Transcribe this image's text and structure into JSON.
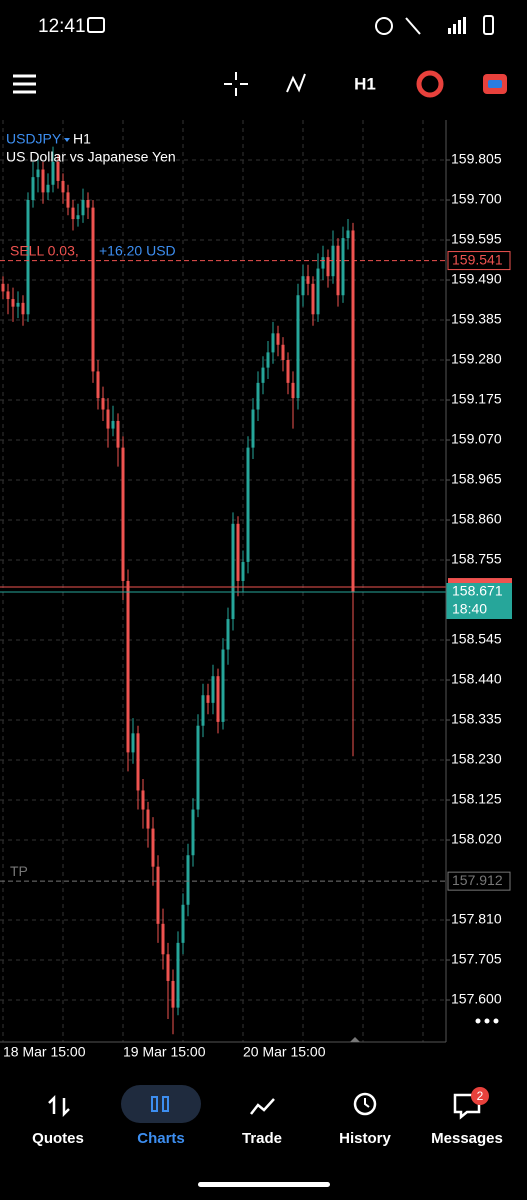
{
  "status_bar": {
    "time": "12:41"
  },
  "toolbar": {
    "timeframe": "H1"
  },
  "chart_data": {
    "type": "candlestick",
    "symbol": "USDJPY",
    "timeframe": "H1",
    "description": "US Dollar vs Japanese Yen",
    "ylim": [
      157.495,
      159.91
    ],
    "yticks": [
      159.805,
      {
        "value": 159.7,
        "label": "159.700"
      },
      159.595,
      {
        "value": 159.49,
        "label": "159.490"
      },
      159.385,
      {
        "value": 159.28,
        "label": "159.280"
      },
      159.175,
      {
        "value": 159.07,
        "label": "159.070"
      },
      158.965,
      {
        "value": 158.86,
        "label": "158.860"
      },
      158.755,
      158.545,
      {
        "value": 158.44,
        "label": "158.440"
      },
      158.335,
      {
        "value": 158.23,
        "label": "158.230"
      },
      158.125,
      {
        "value": 158.02,
        "label": "158.020"
      },
      {
        "value": 157.81,
        "label": "157.810"
      },
      157.705,
      {
        "value": 157.6,
        "label": "157.600"
      }
    ],
    "grid": true,
    "up_color": "#26a69a",
    "down_color": "#ef5350",
    "x_labels": [
      "18 Mar 15:00",
      "19 Mar 15:00",
      "20 Mar 15:00"
    ],
    "candles": [
      [
        159.48,
        159.5,
        159.44,
        159.46
      ],
      [
        159.46,
        159.48,
        159.4,
        159.44
      ],
      [
        159.44,
        159.47,
        159.38,
        159.42
      ],
      [
        159.42,
        159.46,
        159.39,
        159.43
      ],
      [
        159.43,
        159.45,
        159.37,
        159.4
      ],
      [
        159.4,
        159.72,
        159.38,
        159.7
      ],
      [
        159.7,
        159.8,
        159.68,
        159.76
      ],
      [
        159.76,
        159.82,
        159.72,
        159.78
      ],
      [
        159.78,
        159.8,
        159.69,
        159.72
      ],
      [
        159.72,
        159.77,
        159.7,
        159.74
      ],
      [
        159.74,
        159.84,
        159.72,
        159.8
      ],
      [
        159.8,
        159.82,
        159.73,
        159.75
      ],
      [
        159.75,
        159.77,
        159.69,
        159.72
      ],
      [
        159.72,
        159.74,
        159.66,
        159.68
      ],
      [
        159.68,
        159.7,
        159.62,
        159.65
      ],
      [
        159.65,
        159.69,
        159.63,
        159.66
      ],
      [
        159.66,
        159.73,
        159.64,
        159.7
      ],
      [
        159.7,
        159.72,
        159.65,
        159.68
      ],
      [
        159.68,
        159.7,
        159.22,
        159.25
      ],
      [
        159.25,
        159.28,
        159.15,
        159.18
      ],
      [
        159.18,
        159.21,
        159.12,
        159.15
      ],
      [
        159.15,
        159.18,
        159.05,
        159.1
      ],
      [
        159.1,
        159.16,
        159.08,
        159.12
      ],
      [
        159.12,
        159.14,
        159.0,
        159.05
      ],
      [
        159.05,
        159.08,
        158.65,
        158.7
      ],
      [
        158.7,
        158.73,
        158.2,
        158.25
      ],
      [
        158.25,
        158.34,
        158.22,
        158.3
      ],
      [
        158.3,
        158.32,
        158.1,
        158.15
      ],
      [
        158.15,
        158.18,
        158.05,
        158.1
      ],
      [
        158.1,
        158.12,
        158.0,
        158.05
      ],
      [
        158.05,
        158.08,
        157.9,
        157.95
      ],
      [
        157.95,
        157.98,
        157.75,
        157.8
      ],
      [
        157.8,
        157.84,
        157.68,
        157.72
      ],
      [
        157.72,
        157.75,
        157.55,
        157.65
      ],
      [
        157.65,
        157.68,
        157.51,
        157.58
      ],
      [
        157.58,
        157.78,
        157.56,
        157.75
      ],
      [
        157.75,
        157.88,
        157.72,
        157.85
      ],
      [
        157.85,
        158.01,
        157.82,
        157.98
      ],
      [
        157.98,
        158.13,
        157.95,
        158.1
      ],
      [
        158.1,
        158.35,
        158.08,
        158.32
      ],
      [
        158.32,
        158.43,
        158.29,
        158.4
      ],
      [
        158.4,
        158.43,
        158.35,
        158.38
      ],
      [
        158.38,
        158.48,
        158.35,
        158.45
      ],
      [
        158.45,
        158.47,
        158.3,
        158.33
      ],
      [
        158.33,
        158.55,
        158.31,
        158.52
      ],
      [
        158.52,
        158.63,
        158.48,
        158.6
      ],
      [
        158.6,
        158.88,
        158.57,
        158.85
      ],
      [
        158.85,
        158.87,
        158.66,
        158.7
      ],
      [
        158.7,
        158.78,
        158.67,
        158.75
      ],
      [
        158.75,
        159.08,
        158.72,
        159.05
      ],
      [
        159.05,
        159.18,
        159.02,
        159.15
      ],
      [
        159.15,
        159.25,
        159.12,
        159.22
      ],
      [
        159.22,
        159.29,
        159.19,
        159.26
      ],
      [
        159.26,
        159.33,
        159.23,
        159.3
      ],
      [
        159.3,
        159.38,
        159.27,
        159.35
      ],
      [
        159.35,
        159.37,
        159.29,
        159.32
      ],
      [
        159.32,
        159.34,
        159.25,
        159.28
      ],
      [
        159.28,
        159.3,
        159.19,
        159.22
      ],
      [
        159.22,
        159.25,
        159.1,
        159.18
      ],
      [
        159.18,
        159.48,
        159.15,
        159.45
      ],
      [
        159.45,
        159.53,
        159.42,
        159.5
      ],
      [
        159.5,
        159.53,
        159.45,
        159.48
      ],
      [
        159.48,
        159.5,
        159.37,
        159.4
      ],
      [
        159.4,
        159.56,
        159.38,
        159.52
      ],
      [
        159.52,
        159.58,
        159.49,
        159.55
      ],
      [
        159.55,
        159.57,
        159.47,
        159.5
      ],
      [
        159.5,
        159.62,
        159.48,
        159.58
      ],
      [
        159.58,
        159.6,
        159.42,
        159.45
      ],
      [
        159.45,
        159.63,
        159.43,
        159.6
      ],
      [
        159.6,
        159.65,
        159.57,
        159.62
      ],
      [
        159.62,
        159.64,
        158.24,
        158.671
      ]
    ],
    "position": {
      "label": "SELL 0.03,",
      "profit": "+16.20 USD",
      "price": 159.541
    },
    "ask": 158.684,
    "current": {
      "price": 158.671,
      "time": "18:40"
    },
    "take_profit": {
      "label": "TP",
      "price": 157.912
    }
  },
  "nav": [
    {
      "label": "Quotes"
    },
    {
      "label": "Charts"
    },
    {
      "label": "Trade"
    },
    {
      "label": "History"
    },
    {
      "label": "Messages",
      "badge": 2
    }
  ]
}
